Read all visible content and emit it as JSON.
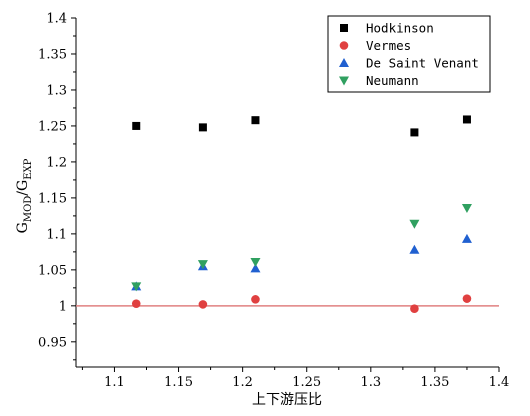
{
  "chart_data": {
    "type": "scatter",
    "xlabel": "上下游压比",
    "ylabel": {
      "base1": "G",
      "sub1": "MOD",
      "sep": "/",
      "base2": "G",
      "sub2": "EXP"
    },
    "xlim": [
      1.07,
      1.4
    ],
    "ylim": [
      0.915,
      1.4
    ],
    "x_ticks": [
      1.1,
      1.15,
      1.2,
      1.25,
      1.3,
      1.35,
      1.4
    ],
    "x_tick_labels": [
      "1.1",
      "1.15",
      "1.2",
      "1.25",
      "1.3",
      "1.35",
      "1.4"
    ],
    "y_ticks": [
      0.95,
      1.0,
      1.05,
      1.1,
      1.15,
      1.2,
      1.25,
      1.3,
      1.35,
      1.4
    ],
    "y_tick_labels": [
      "0.95",
      "1",
      "1.05",
      "1.1",
      "1.15",
      "1.2",
      "1.25",
      "1.3",
      "1.35",
      "1.4"
    ],
    "reference_line": {
      "y": 1.0,
      "color": "#e08080"
    },
    "grid": false,
    "legend_position": "top-right",
    "series": [
      {
        "name": "Hodkinson",
        "marker": "square",
        "color": "#000000",
        "x": [
          1.117,
          1.169,
          1.21,
          1.334,
          1.375
        ],
        "y": [
          1.25,
          1.248,
          1.258,
          1.241,
          1.259
        ]
      },
      {
        "name": "Vermes",
        "marker": "circle",
        "color": "#e04040",
        "x": [
          1.117,
          1.169,
          1.21,
          1.334,
          1.375
        ],
        "y": [
          1.003,
          1.002,
          1.009,
          0.996,
          1.01
        ]
      },
      {
        "name": "De Saint Venant",
        "marker": "triangle-up",
        "color": "#2060d0",
        "x": [
          1.117,
          1.169,
          1.21,
          1.334,
          1.375
        ],
        "y": [
          1.027,
          1.055,
          1.052,
          1.078,
          1.093
        ]
      },
      {
        "name": "Neumann",
        "marker": "triangle-down",
        "color": "#30a060",
        "x": [
          1.117,
          1.169,
          1.21,
          1.334,
          1.375
        ],
        "y": [
          1.027,
          1.058,
          1.061,
          1.114,
          1.136
        ]
      }
    ]
  }
}
